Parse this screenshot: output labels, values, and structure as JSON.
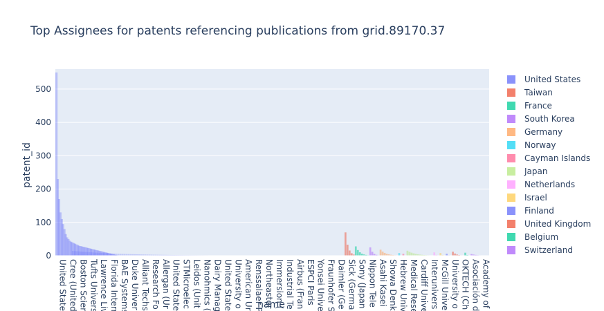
{
  "chart_data": {
    "type": "bar",
    "title": "Top Assignees for patents referencing publications from grid.89170.37",
    "xlabel": "name",
    "ylabel": "patent_id",
    "ylim": [
      0,
      560
    ],
    "yticks": [
      0,
      100,
      200,
      300,
      400,
      500
    ],
    "grid": true,
    "legend_position": "right",
    "xticklabels": [
      "United States",
      "Cree (United",
      "Boston Scien",
      "Tufts Univers",
      "Lawrence Liv",
      "Florida Intern",
      "BAE Systems",
      "Duke Univer",
      "Alliant Techs",
      "Research Fo",
      "Allergan (Ur",
      "United State",
      "STMicroelec",
      "Leidos (Unit",
      "Nanohmics (",
      "Dairy Manag",
      "United State",
      "University o",
      "American Ur",
      "Renssalaer P",
      "Northeaster",
      "Immersion (",
      "Industrial Te",
      "Airbus (Fran",
      "ESPCI Paris",
      "Yonsei Unive",
      "Fraunhofer S",
      "Daimler (Ge",
      "Sick (Germa",
      "Sony (Japan",
      "Nippon Tele",
      "Asahi Kasei",
      "Showa Denk",
      "Hebrew Univ",
      "Medical Rese",
      "Cardiff Unive",
      "Interunivers",
      "McGill Unive",
      "University o",
      "OKTECH (Ch",
      "Asociación d",
      "Academy of"
    ],
    "n_categories": 210,
    "series": [
      {
        "name": "United States",
        "color": "#636efa",
        "opacity": 0.28,
        "segments": [
          [
            0,
            140,
            550
          ]
        ]
      },
      {
        "name": "Taiwan",
        "color": "#EF553B",
        "segments": [
          [
            140,
            145,
            70
          ]
        ]
      },
      {
        "name": "France",
        "color": "#00cc96",
        "segments": [
          [
            145,
            152,
            28
          ]
        ]
      },
      {
        "name": "South Korea",
        "color": "#ab63fa",
        "segments": [
          [
            152,
            157,
            25
          ]
        ]
      },
      {
        "name": "Germany",
        "color": "#FFA15A",
        "segments": [
          [
            157,
            166,
            18
          ]
        ]
      },
      {
        "name": "Norway",
        "color": "#19d3f3",
        "segments": [
          [
            166,
            168,
            8
          ]
        ]
      },
      {
        "name": "Cayman Islands",
        "color": "#FF6692",
        "segments": [
          [
            168,
            170,
            6
          ]
        ]
      },
      {
        "name": "Japan",
        "color": "#B6E880",
        "segments": [
          [
            170,
            183,
            15
          ]
        ]
      },
      {
        "name": "Netherlands",
        "color": "#FF97FF",
        "segments": [
          [
            183,
            186,
            10
          ]
        ]
      },
      {
        "name": "Israel",
        "color": "#FECB52",
        "segments": [
          [
            186,
            189,
            8
          ]
        ]
      },
      {
        "name": "Finland",
        "color": "#636efa",
        "segments": [
          [
            189,
            192,
            6
          ]
        ]
      },
      {
        "name": "United Kingdom",
        "color": "#EF553B",
        "segments": [
          [
            192,
            198,
            12
          ]
        ]
      },
      {
        "name": "Belgium",
        "color": "#00cc96",
        "segments": [
          [
            198,
            201,
            9
          ]
        ]
      },
      {
        "name": "Switzerland",
        "color": "#ab63fa",
        "segments": [
          [
            201,
            210,
            5
          ]
        ]
      }
    ],
    "us_profile": [
      550,
      230,
      170,
      130,
      110,
      95,
      80,
      65,
      55,
      50,
      45,
      42,
      40,
      38,
      36,
      34,
      32,
      30,
      29,
      28,
      27,
      26,
      25,
      24,
      23,
      22,
      21,
      20,
      19,
      18,
      17,
      16,
      15,
      14,
      13,
      12,
      11,
      10,
      9,
      8,
      7,
      6,
      5,
      4,
      3,
      2
    ]
  }
}
